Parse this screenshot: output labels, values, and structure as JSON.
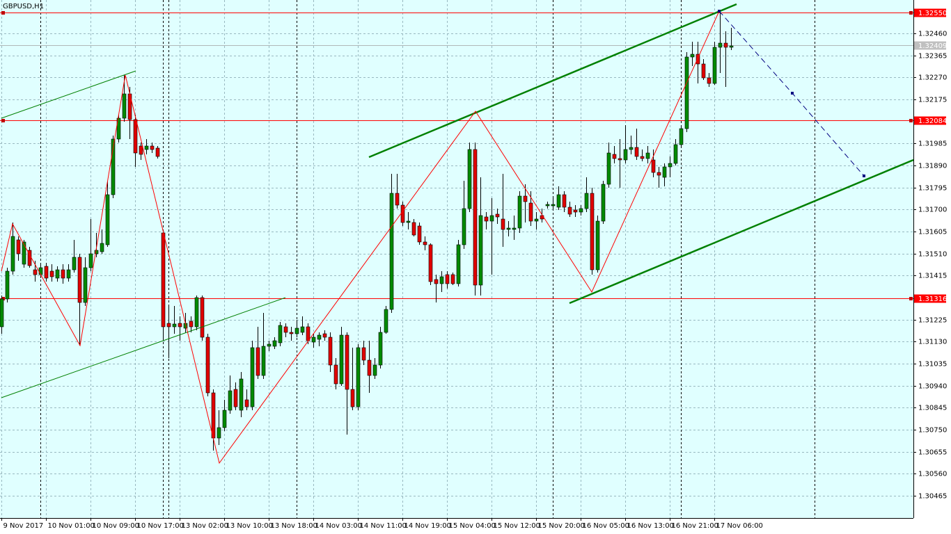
{
  "chart_data": {
    "type": "candlestick",
    "title": "GBPUSD,H1",
    "up_color": "#008a00",
    "down_color": "#e00000",
    "grid": true,
    "xlim": [
      -0.25,
      163.75
    ],
    "ylim": [
      1.30369,
      1.32604
    ],
    "xticks": [
      {
        "value": 0,
        "label": "9 Nov 2017"
      },
      {
        "value": 8,
        "label": "10 Nov 01:00"
      },
      {
        "value": 16,
        "label": "10 Nov 09:00"
      },
      {
        "value": 24,
        "label": "10 Nov 17:00"
      },
      {
        "value": 32,
        "label": "13 Nov 02:00"
      },
      {
        "value": 40,
        "label": "13 Nov 10:00"
      },
      {
        "value": 48,
        "label": "13 Nov 18:00"
      },
      {
        "value": 56,
        "label": "14 Nov 03:00"
      },
      {
        "value": 64,
        "label": "14 Nov 11:00"
      },
      {
        "value": 72,
        "label": "14 Nov 19:00"
      },
      {
        "value": 80,
        "label": "15 Nov 04:00"
      },
      {
        "value": 88,
        "label": "15 Nov 12:00"
      },
      {
        "value": 96,
        "label": "15 Nov 20:00"
      },
      {
        "value": 104,
        "label": "16 Nov 05:00"
      },
      {
        "value": 112,
        "label": "16 Nov 13:00"
      },
      {
        "value": 120,
        "label": "16 Nov 21:00"
      },
      {
        "value": 128,
        "label": "17 Nov 06:00"
      }
    ],
    "yticks": [
      {
        "value": 1.3246,
        "label": "1.32460"
      },
      {
        "value": 1.32365,
        "label": "1.32365"
      },
      {
        "value": 1.3227,
        "label": "1.32270"
      },
      {
        "value": 1.32175,
        "label": "1.32175"
      },
      {
        "value": 1.31985,
        "label": "1.31985"
      },
      {
        "value": 1.3189,
        "label": "1.31890"
      },
      {
        "value": 1.31795,
        "label": "1.31795"
      },
      {
        "value": 1.317,
        "label": "1.31700"
      },
      {
        "value": 1.31605,
        "label": "1.31605"
      },
      {
        "value": 1.3151,
        "label": "1.31510"
      },
      {
        "value": 1.31415,
        "label": "1.31415"
      },
      {
        "value": 1.31225,
        "label": "1.31225"
      },
      {
        "value": 1.3113,
        "label": "1.31130"
      },
      {
        "value": 1.31035,
        "label": "1.31035"
      },
      {
        "value": 1.3094,
        "label": "1.30940"
      },
      {
        "value": 1.30845,
        "label": "1.30845"
      },
      {
        "value": 1.3075,
        "label": "1.30750"
      },
      {
        "value": 1.30655,
        "label": "1.30655"
      },
      {
        "value": 1.3056,
        "label": "1.30560"
      },
      {
        "value": 1.30465,
        "label": "1.30465"
      }
    ],
    "hlines": [
      {
        "value": 1.3255,
        "label": "1.32550"
      },
      {
        "value": 1.32084,
        "label": "1.32084"
      },
      {
        "value": 1.31316,
        "label": "1.31316"
      }
    ],
    "bid": {
      "value": 1.32409,
      "label": "1.32409"
    },
    "ohlc": [
      [
        1.31194,
        1.31329,
        1.31164,
        1.31314
      ],
      [
        1.31314,
        1.31449,
        1.31299,
        1.31434
      ],
      [
        1.31434,
        1.31644,
        1.31419,
        1.31584
      ],
      [
        1.31569,
        1.31584,
        1.31479,
        1.31509
      ],
      [
        1.31464,
        1.31569,
        1.31449,
        1.3156
      ],
      [
        1.31524,
        1.31539,
        1.31449,
        1.31458
      ],
      [
        1.3144,
        1.31479,
        1.31389,
        1.31419
      ],
      [
        1.31419,
        1.3147,
        1.31404,
        1.31449
      ],
      [
        1.31455,
        1.3147,
        1.31389,
        1.31404
      ],
      [
        1.31434,
        1.31464,
        1.31389,
        1.3141
      ],
      [
        1.31404,
        1.31455,
        1.31389,
        1.3144
      ],
      [
        1.3144,
        1.31464,
        1.3138,
        1.31404
      ],
      [
        1.31404,
        1.31464,
        1.31389,
        1.3144
      ],
      [
        1.3144,
        1.31569,
        1.31428,
        1.31494
      ],
      [
        1.31494,
        1.31509,
        1.31113,
        1.31299
      ],
      [
        1.31299,
        1.31494,
        1.31284,
        1.31449
      ],
      [
        1.31449,
        1.31659,
        1.31434,
        1.31509
      ],
      [
        1.31509,
        1.31599,
        1.31494,
        1.31524
      ],
      [
        1.31518,
        1.31614,
        1.31509,
        1.31554
      ],
      [
        1.31548,
        1.31824,
        1.31539,
        1.31764
      ],
      [
        1.31764,
        1.32019,
        1.31749,
        1.32004
      ],
      [
        1.32004,
        1.32109,
        1.31989,
        1.32094
      ],
      [
        1.32094,
        1.3228,
        1.32079,
        1.32199
      ],
      [
        1.32199,
        1.32229,
        1.32004,
        1.32088
      ],
      [
        1.32088,
        1.32109,
        1.31884,
        1.31944
      ],
      [
        1.31974,
        1.31989,
        1.31914,
        1.31938
      ],
      [
        1.31959,
        1.32004,
        1.31938,
        1.31974
      ],
      [
        1.31974,
        1.31989,
        1.31944,
        1.31959
      ],
      [
        1.31965,
        1.31974,
        1.3192,
        1.31929
      ],
      [
        1.31599,
        1.31614,
        1.31134,
        1.31194
      ],
      [
        1.31209,
        1.31284,
        1.31059,
        1.31194
      ],
      [
        1.31194,
        1.31284,
        1.31164,
        1.31206
      ],
      [
        1.31209,
        1.31239,
        1.31134,
        1.31194
      ],
      [
        1.31188,
        1.31254,
        1.3117,
        1.31209
      ],
      [
        1.31218,
        1.31239,
        1.3117,
        1.31194
      ],
      [
        1.31194,
        1.31329,
        1.31179,
        1.3132
      ],
      [
        1.3132,
        1.31329,
        1.31134,
        1.31149
      ],
      [
        1.31149,
        1.31164,
        1.30894,
        1.30909
      ],
      [
        1.30909,
        1.30924,
        1.3066,
        1.30714
      ],
      [
        1.30714,
        1.30834,
        1.30684,
        1.30759
      ],
      [
        1.30759,
        1.30879,
        1.30744,
        1.30834
      ],
      [
        1.30834,
        1.30984,
        1.30819,
        1.30918
      ],
      [
        1.30924,
        1.30954,
        1.30834,
        1.30849
      ],
      [
        1.30834,
        1.30999,
        1.30804,
        1.30969
      ],
      [
        1.30879,
        1.30924,
        1.30834,
        1.30849
      ],
      [
        1.30849,
        1.31134,
        1.30834,
        1.31104
      ],
      [
        1.31104,
        1.31194,
        1.30969,
        1.30984
      ],
      [
        1.30984,
        1.31254,
        1.30969,
        1.3111
      ],
      [
        1.3111,
        1.31134,
        1.31089,
        1.31119
      ],
      [
        1.3111,
        1.31149,
        1.31098,
        1.31134
      ],
      [
        1.31125,
        1.31215,
        1.3111,
        1.312
      ],
      [
        1.31194,
        1.31209,
        1.31149,
        1.3117
      ],
      [
        1.3117,
        1.31194,
        1.31134,
        1.31164
      ],
      [
        1.31164,
        1.31224,
        1.31149,
        1.31188
      ],
      [
        1.3117,
        1.31239,
        1.31158,
        1.31194
      ],
      [
        1.31194,
        1.31209,
        1.31119,
        1.31134
      ],
      [
        1.31128,
        1.31164,
        1.31104,
        1.31149
      ],
      [
        1.3114,
        1.3117,
        1.3111,
        1.31158
      ],
      [
        1.31164,
        1.31179,
        1.31134,
        1.31149
      ],
      [
        1.31149,
        1.3117,
        1.30999,
        1.31029
      ],
      [
        1.31029,
        1.31059,
        1.30924,
        1.30948
      ],
      [
        1.30948,
        1.31194,
        1.30939,
        1.31158
      ],
      [
        1.31158,
        1.3117,
        1.30729,
        1.30924
      ],
      [
        1.30924,
        1.31104,
        1.30834,
        1.30849
      ],
      [
        1.30849,
        1.31119,
        1.30834,
        1.31104
      ],
      [
        1.31104,
        1.31134,
        1.31029,
        1.3105
      ],
      [
        1.3105,
        1.31134,
        1.30909,
        1.30984
      ],
      [
        1.30984,
        1.31059,
        1.30969,
        1.31029
      ],
      [
        1.31029,
        1.31194,
        1.31014,
        1.3117
      ],
      [
        1.3117,
        1.31284,
        1.31164,
        1.31269
      ],
      [
        1.31269,
        1.31854,
        1.31254,
        1.3177
      ],
      [
        1.3177,
        1.31854,
        1.31704,
        1.31719
      ],
      [
        1.31719,
        1.31734,
        1.31629,
        1.31644
      ],
      [
        1.31644,
        1.31689,
        1.31614,
        1.3165
      ],
      [
        1.31644,
        1.31659,
        1.31584,
        1.3159
      ],
      [
        1.31629,
        1.31644,
        1.31548,
        1.3156
      ],
      [
        1.3156,
        1.31584,
        1.31524,
        1.31548
      ],
      [
        1.31548,
        1.31554,
        1.31374,
        1.31389
      ],
      [
        1.31398,
        1.31419,
        1.31299,
        1.3138
      ],
      [
        1.3138,
        1.31434,
        1.31344,
        1.3141
      ],
      [
        1.31419,
        1.31434,
        1.31359,
        1.3138
      ],
      [
        1.31419,
        1.31428,
        1.31374,
        1.3138
      ],
      [
        1.3138,
        1.31569,
        1.31368,
        1.31548
      ],
      [
        1.31548,
        1.31824,
        1.3153,
        1.31704
      ],
      [
        1.31704,
        1.31989,
        1.31689,
        1.31959
      ],
      [
        1.31959,
        1.31989,
        1.31329,
        1.31374
      ],
      [
        1.31374,
        1.31839,
        1.31329,
        1.31674
      ],
      [
        1.31668,
        1.31689,
        1.31614,
        1.3165
      ],
      [
        1.3165,
        1.31749,
        1.31419,
        1.31674
      ],
      [
        1.3168,
        1.31704,
        1.31638,
        1.31668
      ],
      [
        1.31659,
        1.31854,
        1.31539,
        1.31614
      ],
      [
        1.31614,
        1.3165,
        1.31584,
        1.3162
      ],
      [
        1.31614,
        1.31674,
        1.31569,
        1.3162
      ],
      [
        1.3162,
        1.31779,
        1.31599,
        1.31758
      ],
      [
        1.31758,
        1.31809,
        1.31644,
        1.31734
      ],
      [
        1.31728,
        1.31779,
        1.31629,
        1.3165
      ],
      [
        1.3165,
        1.31689,
        1.31614,
        1.31659
      ],
      [
        1.31674,
        1.31704,
        1.31644,
        1.31659
      ],
      [
        1.31716,
        1.31734,
        1.31704,
        1.31722
      ],
      [
        1.31716,
        1.31749,
        1.31704,
        1.31722
      ],
      [
        1.3171,
        1.318,
        1.31698,
        1.31764
      ],
      [
        1.31764,
        1.31779,
        1.31689,
        1.3171
      ],
      [
        1.3171,
        1.31734,
        1.31668,
        1.3168
      ],
      [
        1.31698,
        1.31719,
        1.31668,
        1.31689
      ],
      [
        1.31689,
        1.31719,
        1.31674,
        1.31704
      ],
      [
        1.31704,
        1.31839,
        1.31689,
        1.3177
      ],
      [
        1.3177,
        1.31794,
        1.31419,
        1.3144
      ],
      [
        1.3144,
        1.31674,
        1.31428,
        1.3165
      ],
      [
        1.3165,
        1.31824,
        1.31638,
        1.31809
      ],
      [
        1.31809,
        1.31989,
        1.31794,
        1.31944
      ],
      [
        1.31938,
        1.31974,
        1.31899,
        1.3192
      ],
      [
        1.3192,
        1.32004,
        1.31794,
        1.31914
      ],
      [
        1.31914,
        1.32064,
        1.31899,
        1.31959
      ],
      [
        1.31959,
        1.32019,
        1.31938,
        1.31968
      ],
      [
        1.31968,
        1.32049,
        1.31914,
        1.31929
      ],
      [
        1.31929,
        1.31959,
        1.31908,
        1.3192
      ],
      [
        1.3192,
        1.31974,
        1.31899,
        1.31944
      ],
      [
        1.31914,
        1.31959,
        1.31839,
        1.3186
      ],
      [
        1.3186,
        1.31884,
        1.31794,
        1.31848
      ],
      [
        1.31839,
        1.31899,
        1.318,
        1.31884
      ],
      [
        1.31884,
        1.31929,
        1.31839,
        1.31899
      ],
      [
        1.31899,
        1.32004,
        1.3189,
        1.3198
      ],
      [
        1.3198,
        1.32064,
        1.31968,
        1.32049
      ],
      [
        1.32049,
        1.32379,
        1.32034,
        1.32358
      ],
      [
        1.32358,
        1.32424,
        1.32319,
        1.3237
      ],
      [
        1.3237,
        1.32424,
        1.32244,
        1.32328
      ],
      [
        1.32328,
        1.32349,
        1.32259,
        1.32268
      ],
      [
        1.32268,
        1.32289,
        1.32229,
        1.32244
      ],
      [
        1.32244,
        1.32424,
        1.32238,
        1.324
      ],
      [
        1.324,
        1.3255,
        1.32289,
        1.32418
      ],
      [
        1.32418,
        1.32469,
        1.32229,
        1.324
      ],
      [
        1.324,
        1.32484,
        1.32388,
        1.32406
      ]
    ]
  }
}
